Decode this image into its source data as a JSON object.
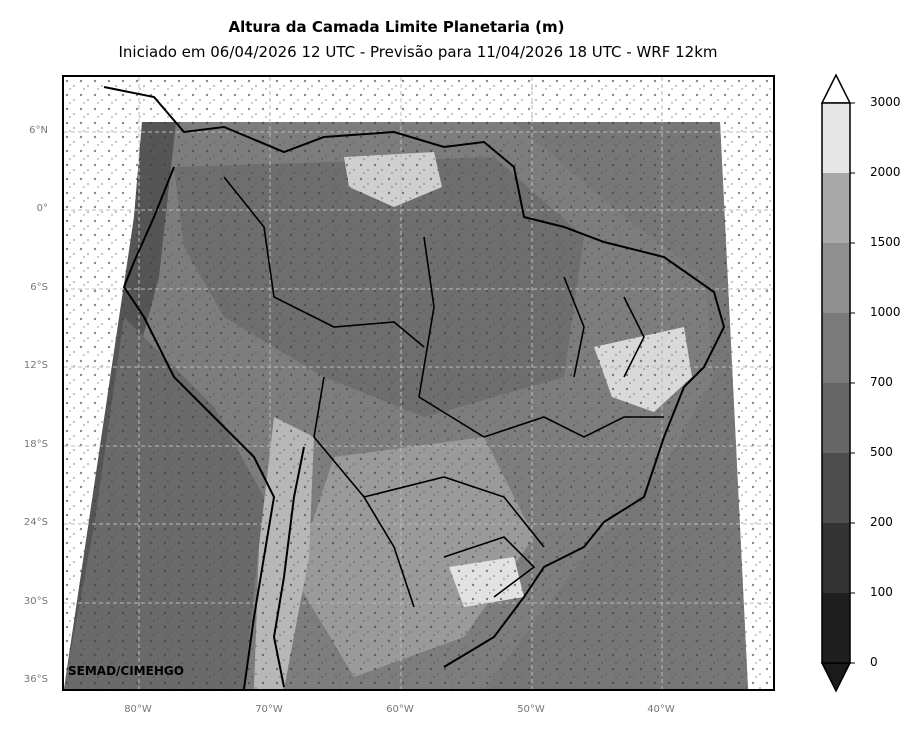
{
  "header": {
    "title": "Altura da Camada Limite Planetaria (m)",
    "subtitle": "Iniciado em 06/04/2026 12 UTC - Previsão para 11/04/2026 18 UTC - WRF 12km"
  },
  "map": {
    "lat_labels": [
      "6°N",
      "0°",
      "6°S",
      "12°S",
      "18°S",
      "24°S",
      "30°S",
      "36°S"
    ],
    "lon_labels": [
      "80°W",
      "70°W",
      "60°W",
      "50°W",
      "40°W"
    ],
    "credit": "SEMAD/CIMEHGO"
  },
  "colorbar": {
    "levels": [
      "0",
      "100",
      "200",
      "500",
      "700",
      "1000",
      "1500",
      "2000",
      "3000"
    ],
    "colors": [
      "#1f1f1f",
      "#333333",
      "#4d4d4d",
      "#666666",
      "#7a7a7a",
      "#8f8f8f",
      "#a8a8a8",
      "#e6e6e6"
    ]
  }
}
